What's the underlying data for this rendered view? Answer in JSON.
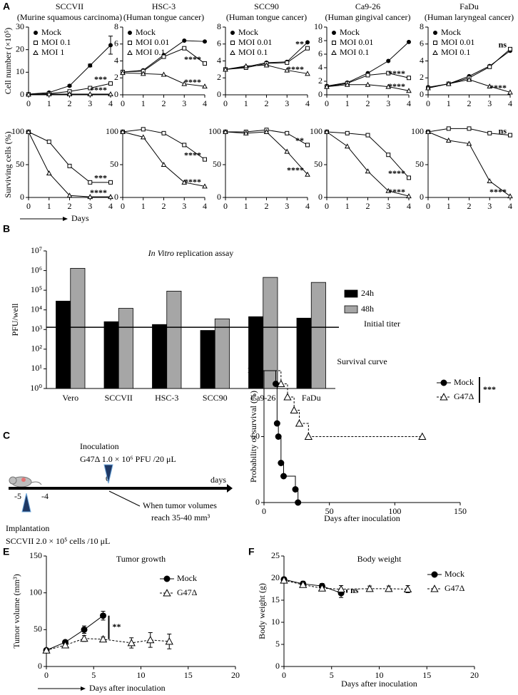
{
  "chart_data": [
    {
      "type": "line",
      "panel": "A",
      "title": "SCCVII",
      "subtitle": "(Murine squamous carcinoma)",
      "ylabel": "Cell number (×10⁵)",
      "x": [
        0,
        1,
        2,
        3,
        4
      ],
      "xlim": [
        0,
        4
      ],
      "xticks": [
        0,
        1,
        2,
        3,
        4
      ],
      "ylim": [
        0,
        30
      ],
      "yticks": [
        0,
        10,
        20,
        30
      ],
      "legend": "upper left",
      "series": [
        {
          "name": "Mock",
          "color": "#000000",
          "marker": "filled-circle",
          "values": [
            0.3,
            1,
            4,
            13,
            22
          ],
          "errors": [
            0.1,
            0.2,
            0.4,
            0.6,
            4
          ]
        },
        {
          "name": "MOI 0.1",
          "color": "#000000",
          "marker": "open-square",
          "values": [
            0.2,
            0.5,
            1.5,
            3,
            5
          ],
          "annotation": "***"
        },
        {
          "name": "MOI 1",
          "color": "#000000",
          "marker": "open-triangle",
          "values": [
            0.2,
            0.3,
            0.3,
            0.3,
            0.3
          ],
          "annotation": "****"
        }
      ]
    },
    {
      "type": "line",
      "title": "HSC-3",
      "subtitle": "(Human tongue cancer)",
      "x": [
        0,
        1,
        2,
        3,
        4
      ],
      "xlim": [
        0,
        4
      ],
      "xticks": [
        0,
        1,
        2,
        3,
        4
      ],
      "ylim": [
        0,
        8
      ],
      "yticks": [
        0,
        2,
        4,
        6,
        8
      ],
      "legend": "upper left",
      "series": [
        {
          "name": "Mock",
          "color": "#000000",
          "marker": "filled-circle",
          "values": [
            2.7,
            2.9,
            4.7,
            6.4,
            6.3
          ]
        },
        {
          "name": "MOI 0.01",
          "color": "#000000",
          "marker": "open-square",
          "values": [
            2.7,
            2.8,
            4.5,
            5.5,
            3.7
          ],
          "annotation": "****"
        },
        {
          "name": "MOI 0.1",
          "color": "#000000",
          "marker": "open-triangle",
          "values": [
            2.6,
            2.5,
            2.4,
            1.3,
            1
          ],
          "annotation": "****"
        }
      ]
    },
    {
      "type": "line",
      "title": "SCC90",
      "subtitle": "(Human tongue cancer)",
      "x": [
        0,
        1,
        2,
        3,
        4
      ],
      "xlim": [
        0,
        4
      ],
      "xticks": [
        0,
        1,
        2,
        3,
        4
      ],
      "ylim": [
        0,
        8
      ],
      "yticks": [
        0,
        2,
        4,
        6,
        8
      ],
      "legend": "upper left",
      "series": [
        {
          "name": "Mock",
          "color": "#000000",
          "marker": "filled-circle",
          "values": [
            3,
            3.3,
            3.8,
            3.9,
            6.2
          ]
        },
        {
          "name": "MOI 0.01",
          "color": "#000000",
          "marker": "open-square",
          "values": [
            3,
            3.2,
            3.7,
            3.8,
            5.5
          ],
          "annotation": "**"
        },
        {
          "name": "MOI 0.1",
          "color": "#000000",
          "marker": "open-triangle",
          "values": [
            3,
            3.4,
            3.5,
            2.9,
            2.5
          ],
          "annotation": "****"
        }
      ]
    },
    {
      "type": "line",
      "title": "Ca9-26",
      "subtitle": "(Human gingival cancer)",
      "x": [
        0,
        1,
        2,
        3,
        4
      ],
      "xlim": [
        0,
        4
      ],
      "xticks": [
        0,
        1,
        2,
        3,
        4
      ],
      "ylim": [
        0,
        10
      ],
      "yticks": [
        0,
        2,
        4,
        6,
        8,
        10
      ],
      "legend": "upper left",
      "series": [
        {
          "name": "Mock",
          "color": "#000000",
          "marker": "filled-circle",
          "values": [
            1.3,
            1.8,
            3.2,
            5,
            7.8
          ]
        },
        {
          "name": "MOI 0.01",
          "color": "#000000",
          "marker": "open-square",
          "values": [
            1.2,
            1.7,
            2.9,
            3.2,
            2.5
          ],
          "annotation": "****"
        },
        {
          "name": "MOI 0.1",
          "color": "#000000",
          "marker": "open-triangle",
          "values": [
            1.2,
            1.5,
            1.5,
            1.2,
            0.6
          ],
          "annotation": "****"
        }
      ]
    },
    {
      "type": "line",
      "title": "FaDu",
      "subtitle": "(Human laryngeal cancer)",
      "x": [
        0,
        1,
        2,
        3,
        4
      ],
      "xlim": [
        0,
        4
      ],
      "xticks": [
        0,
        1,
        2,
        3,
        4
      ],
      "ylim": [
        0,
        8
      ],
      "yticks": [
        0,
        2,
        4,
        6,
        8
      ],
      "legend": "upper left",
      "series": [
        {
          "name": "Mock",
          "color": "#000000",
          "marker": "filled-circle",
          "values": [
            0.9,
            1.3,
            2.2,
            3.4,
            5.2
          ]
        },
        {
          "name": "MOI 0.01",
          "color": "#000000",
          "marker": "open-square",
          "values": [
            0.8,
            1.3,
            2,
            3.3,
            5.4
          ],
          "annotation": "ns"
        },
        {
          "name": "MOI 0.1",
          "color": "#000000",
          "marker": "open-triangle",
          "values": [
            0.8,
            1.3,
            1.8,
            1,
            0.3
          ],
          "annotation": "****"
        }
      ]
    },
    {
      "type": "line",
      "ylabel": "Surviving cells (%)",
      "xlabel": "Days",
      "xlabel_arrow": true,
      "x": [
        0,
        1,
        2,
        3,
        4
      ],
      "xlim": [
        0,
        4
      ],
      "xticks": [
        0,
        1,
        2,
        3,
        4
      ],
      "ylim": [
        0,
        100
      ],
      "yticks": [
        0,
        50,
        100
      ],
      "series": [
        {
          "color": "#000000",
          "marker": "open-square",
          "values": [
            100,
            85,
            48,
            23,
            23
          ],
          "annotation": "***"
        },
        {
          "color": "#000000",
          "marker": "open-triangle",
          "values": [
            100,
            37,
            3,
            1,
            1
          ],
          "annotation": "****"
        }
      ]
    },
    {
      "type": "line",
      "x": [
        0,
        1,
        2,
        3,
        4
      ],
      "xlim": [
        0,
        4
      ],
      "xticks": [
        0,
        1,
        2,
        3,
        4
      ],
      "ylim": [
        0,
        100
      ],
      "yticks": [
        0,
        50,
        100
      ],
      "series": [
        {
          "color": "#000000",
          "marker": "open-square",
          "values": [
            100,
            104,
            98,
            80,
            58
          ],
          "annotation": "****"
        },
        {
          "color": "#000000",
          "marker": "open-triangle",
          "values": [
            100,
            92,
            50,
            23,
            17
          ],
          "annotation": "****"
        }
      ]
    },
    {
      "type": "line",
      "x": [
        0,
        1,
        2,
        3,
        4
      ],
      "xlim": [
        0,
        4
      ],
      "xticks": [
        0,
        1,
        2,
        3,
        4
      ],
      "ylim": [
        0,
        100
      ],
      "yticks": [
        0,
        50,
        100
      ],
      "series": [
        {
          "color": "#000000",
          "marker": "open-square",
          "values": [
            100,
            100,
            103,
            98,
            80
          ],
          "annotation": "**"
        },
        {
          "color": "#000000",
          "marker": "open-triangle",
          "values": [
            100,
            98,
            100,
            70,
            35
          ],
          "annotation": "****"
        }
      ]
    },
    {
      "type": "line",
      "x": [
        0,
        1,
        2,
        3,
        4
      ],
      "xlim": [
        0,
        4
      ],
      "xticks": [
        0,
        1,
        2,
        3,
        4
      ],
      "ylim": [
        0,
        100
      ],
      "yticks": [
        0,
        50,
        100
      ],
      "series": [
        {
          "color": "#000000",
          "marker": "open-square",
          "values": [
            100,
            98,
            95,
            65,
            30
          ],
          "annotation": "****"
        },
        {
          "color": "#000000",
          "marker": "open-triangle",
          "values": [
            100,
            78,
            40,
            10,
            2
          ],
          "annotation": "****"
        }
      ]
    },
    {
      "type": "line",
      "x": [
        0,
        1,
        2,
        3,
        4
      ],
      "xlim": [
        0,
        4
      ],
      "xticks": [
        0,
        1,
        2,
        3,
        4
      ],
      "ylim": [
        0,
        100
      ],
      "yticks": [
        0,
        50,
        100
      ],
      "series": [
        {
          "color": "#000000",
          "marker": "open-square",
          "values": [
            100,
            105,
            105,
            98,
            95
          ],
          "annotation": "ns"
        },
        {
          "color": "#000000",
          "marker": "open-triangle",
          "values": [
            100,
            87,
            82,
            25,
            2
          ],
          "annotation": "****"
        }
      ]
    },
    {
      "type": "bar",
      "panel": "B",
      "title_italic": "In Vitro",
      "title": "replication assay",
      "ylabel": "PFU/well",
      "ylog": true,
      "categories": [
        "Vero",
        "SCCVII",
        "HSC-3",
        "SCC90",
        "Ca9-26",
        "FaDu"
      ],
      "ylim": [
        1,
        10000000
      ],
      "yticks": [
        {
          "value": 1,
          "label": "10⁰"
        },
        {
          "value": 10,
          "label": "10¹"
        },
        {
          "value": 100,
          "label": "10²"
        },
        {
          "value": 1000,
          "label": "10³"
        },
        {
          "value": 10000,
          "label": "10⁴"
        },
        {
          "value": 100000,
          "label": "10⁵"
        },
        {
          "value": 1000000,
          "label": "10⁶"
        },
        {
          "value": 10000000,
          "label": "10⁷"
        }
      ],
      "legend": "right",
      "series": [
        {
          "name": "24h",
          "color": "#000000",
          "values": [
            28000,
            2500,
            1800,
            900,
            4500,
            3800
          ]
        },
        {
          "name": "48h",
          "color": "#a6a6a6",
          "values": [
            1300000,
            12000,
            90000,
            3500,
            450000,
            250000
          ]
        }
      ],
      "reference": {
        "value": 1300,
        "label": "Initial titer"
      }
    },
    {
      "type": "line",
      "step": true,
      "panel": "D",
      "title": "Survival curve",
      "ylabel": "Probability of survival (%)",
      "xlabel": "Days after inoculation",
      "xlim": [
        0,
        150
      ],
      "xticks": [
        0,
        50,
        100,
        150
      ],
      "ylim": [
        0,
        100
      ],
      "yticks": [
        0,
        50,
        100
      ],
      "legend": "upper right",
      "significance": "***",
      "series": [
        {
          "name": "Mock",
          "color": "#000000",
          "marker": "filled-circle",
          "x": [
            0,
            9,
            10,
            11,
            13,
            15,
            24,
            26
          ],
          "values": [
            100,
            90,
            60,
            50,
            30,
            20,
            10,
            0
          ]
        },
        {
          "name": "G47Δ",
          "color": "#000000",
          "marker": "open-triangle",
          "dash": true,
          "x": [
            0,
            13,
            18,
            23,
            27,
            34,
            121
          ],
          "values": [
            100,
            90,
            80,
            70,
            60,
            50,
            50
          ]
        }
      ]
    },
    {
      "type": "line",
      "panel": "E",
      "title": "Tumor  growth",
      "ylabel": "Tumor volume (mm³)",
      "xlabel": "Days after inoculation",
      "xlabel_arrow": true,
      "xlim": [
        0,
        20
      ],
      "xticks": [
        0,
        5,
        10,
        15,
        20
      ],
      "ylim": [
        0,
        150
      ],
      "yticks": [
        0,
        50,
        100,
        150
      ],
      "legend": "upper right",
      "significance": "**",
      "series": [
        {
          "name": "Mock",
          "color": "#000000",
          "marker": "filled-circle",
          "x": [
            0,
            2,
            4,
            6
          ],
          "values": [
            22,
            33,
            50,
            69
          ],
          "errors": [
            2,
            2,
            5,
            6
          ]
        },
        {
          "name": "G47Δ",
          "color": "#000000",
          "marker": "open-triangle",
          "dash": true,
          "x": [
            0,
            2,
            4,
            6,
            9,
            11,
            13
          ],
          "values": [
            22,
            29,
            38,
            37,
            32,
            36,
            34
          ],
          "errors": [
            2,
            2,
            4,
            3,
            7,
            10,
            10
          ]
        }
      ]
    },
    {
      "type": "line",
      "panel": "F",
      "title": "Body weight",
      "ylabel": "Body weight (g)",
      "xlabel": "Days after inoculation",
      "xlim": [
        0,
        20
      ],
      "xticks": [
        0,
        5,
        10,
        15,
        20
      ],
      "ylim": [
        0,
        25
      ],
      "yticks": [
        0,
        5,
        10,
        15,
        20,
        25
      ],
      "legend": "upper right",
      "significance": "ns",
      "series": [
        {
          "name": "Mock",
          "color": "#000000",
          "marker": "filled-circle",
          "x": [
            0,
            2,
            4,
            6
          ],
          "values": [
            19.7,
            18.7,
            18.2,
            16.6
          ],
          "errors": [
            0.5,
            0.6,
            0.6,
            1.0
          ]
        },
        {
          "name": "G47Δ",
          "color": "#000000",
          "marker": "open-triangle",
          "dash": true,
          "x": [
            0,
            2,
            4,
            6,
            9,
            11,
            13
          ],
          "values": [
            19.5,
            18.5,
            17.7,
            17.5,
            17.6,
            17.6,
            17.5
          ],
          "errors": [
            0.5,
            0.5,
            0.6,
            0.8,
            0.6,
            0.6,
            0.8
          ]
        }
      ]
    }
  ],
  "diagram": {
    "panel": "C",
    "inoculation": "Inoculation",
    "dose": "G47Δ 1.0 × 10⁶ PFU /20 μL",
    "axis_label": "days",
    "ticks": [
      "-5",
      "-4",
      "0"
    ],
    "condition": [
      "When tumor volumes",
      "reach 35-40 mm³"
    ],
    "implantation": "Implantation",
    "cells": "SCCVII 2.0 × 10⁵ cells /10 μL"
  }
}
